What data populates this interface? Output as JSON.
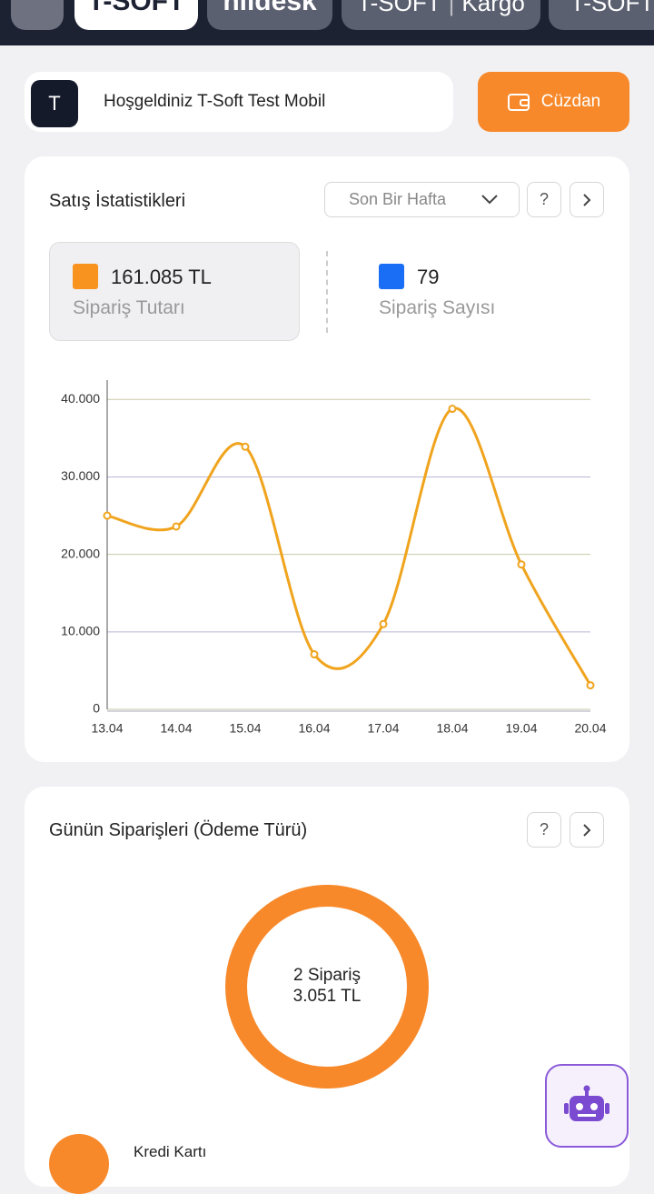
{
  "tabs": [
    {
      "label": "T-SOFT"
    },
    {
      "label": "hiidesk"
    },
    {
      "label": "T-SOFT",
      "sub": "Kargo"
    },
    {
      "label": "T-SOFT"
    }
  ],
  "welcome": {
    "avatar": "T",
    "text": "Hoşgeldiniz T-Soft Test Mobil"
  },
  "wallet_button": "Cüzdan",
  "sales_card": {
    "title": "Satış İstatistikleri",
    "period": "Son Bir Hafta",
    "help": "?",
    "stats": [
      {
        "value": "161.085 TL",
        "label": "Sipariş Tutarı",
        "color": "#f7931e"
      },
      {
        "value": "79",
        "label": "Sipariş Sayısı",
        "color": "#1a6ef5"
      }
    ],
    "chart": {
      "type": "line",
      "categories": [
        "13.04",
        "14.04",
        "15.04",
        "16.04",
        "17.04",
        "18.04",
        "19.04",
        "20.04"
      ],
      "values": [
        25000,
        23600,
        33900,
        7100,
        11000,
        38800,
        18700,
        3100
      ],
      "color": "#f0a41e",
      "ylim": [
        0,
        42500
      ],
      "yticks": [
        0,
        {
          "value": 10000,
          "label": "10.000"
        },
        {
          "value": 20000,
          "label": "20.000"
        },
        {
          "value": 30000,
          "label": "30.000"
        },
        {
          "value": 40000,
          "label": "40.000"
        }
      ],
      "grid": true
    }
  },
  "orders_card": {
    "title": "Günün Siparişleri (Ödeme Türü)",
    "help": "?",
    "donut": {
      "count": "2 Sipariş",
      "total": "3.051 TL"
    },
    "legend": [
      {
        "label": "Kredi Kartı"
      }
    ]
  }
}
